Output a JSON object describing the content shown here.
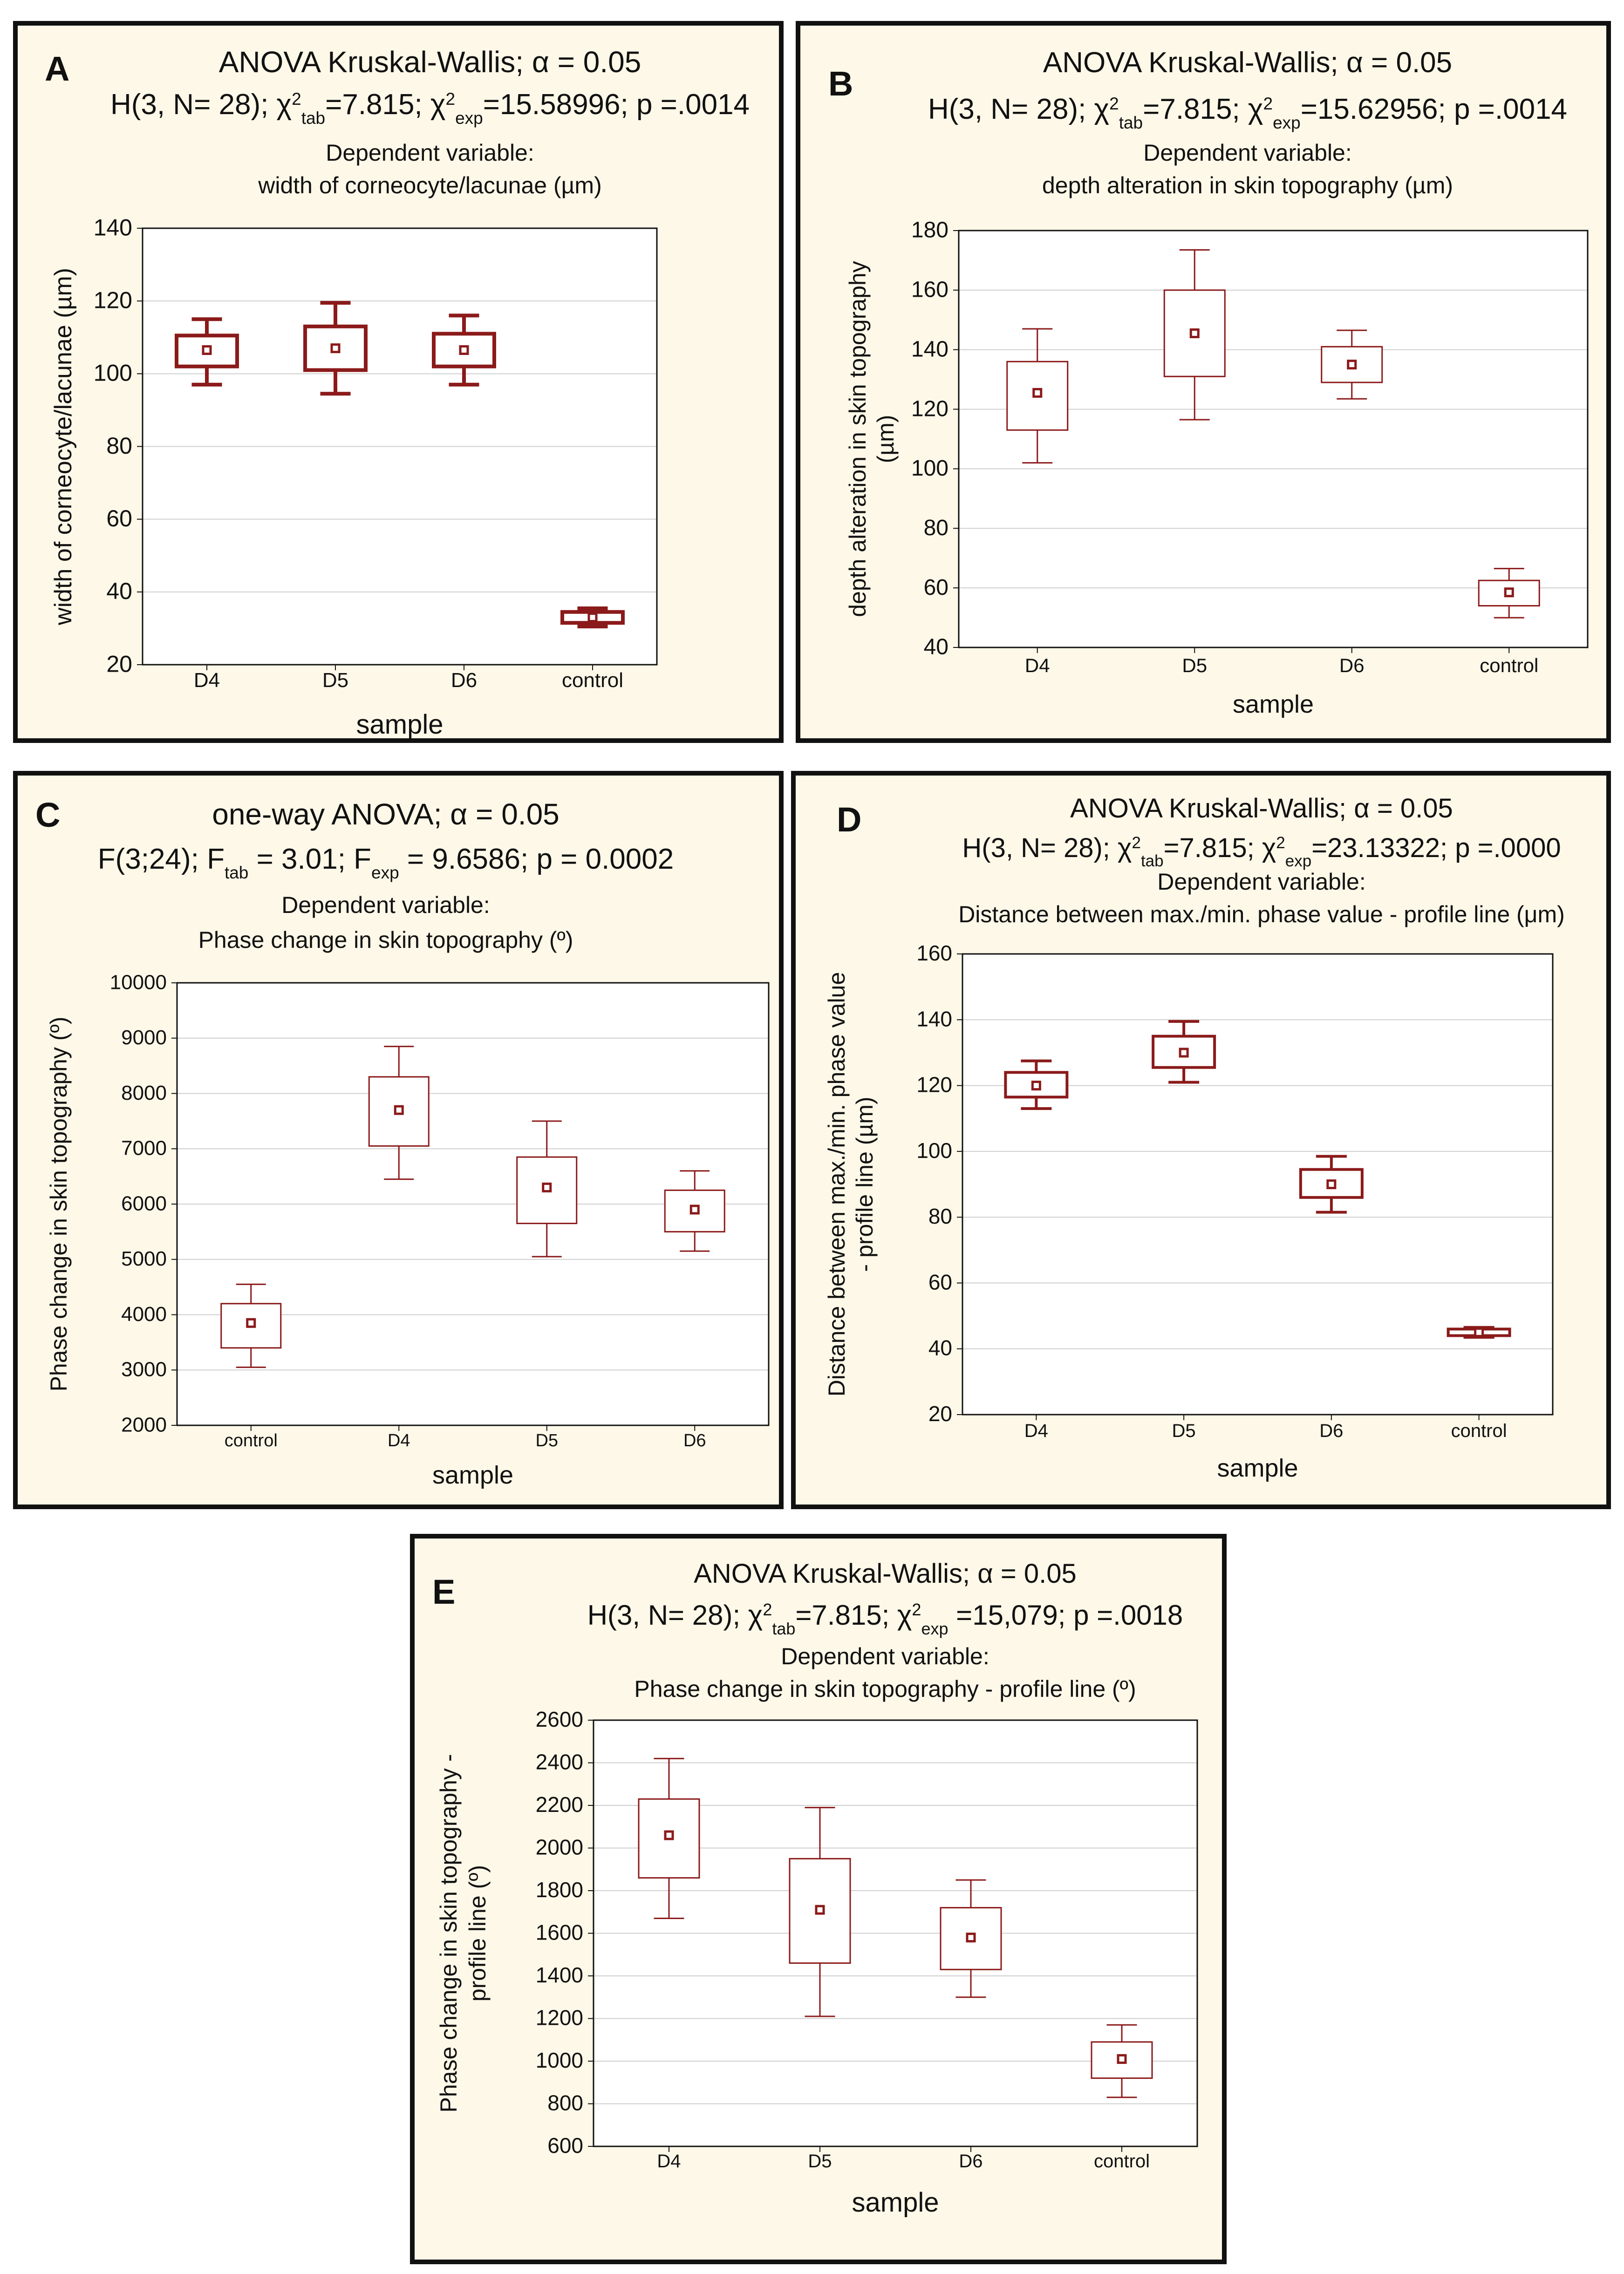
{
  "figure": {
    "colors": {
      "box": "#8b1a1a",
      "panel_bg": "#fdf8e8",
      "plot_bg": "#ffffff",
      "grid": "#cfcfcf",
      "frame": "#111111"
    }
  },
  "chart_data": [
    {
      "panel_label": "A",
      "type": "box",
      "title_line1": "ANOVA Kruskal-Wallis; α = 0.05",
      "stat_line": [
        {
          "t": "H(3, N= 28); χ"
        },
        {
          "t": "2",
          "s": "sup"
        },
        {
          "t": "tab",
          "s": "sub"
        },
        {
          "t": "=7.815; χ"
        },
        {
          "t": "2",
          "s": "sup"
        },
        {
          "t": "exp",
          "s": "sub"
        },
        {
          "t": "=15.58996; p =.0014"
        }
      ],
      "dependent_label": "Dependent variable:",
      "dependent_name": "width of corneocyte/lacunae (µm)",
      "ylabel_lines": [
        "width of corneocyte/lacunae (µm)"
      ],
      "xlabel": "sample",
      "ylim": [
        20,
        140
      ],
      "yticks": [
        20,
        40,
        60,
        80,
        100,
        120,
        140
      ],
      "categories": [
        "D4",
        "D5",
        "D6",
        "control"
      ],
      "boxes": [
        {
          "median": 106.5,
          "q1": 102.0,
          "q3": 110.5,
          "min": 97.0,
          "max": 115.0
        },
        {
          "median": 107.0,
          "q1": 101.0,
          "q3": 113.0,
          "min": 94.5,
          "max": 119.5
        },
        {
          "median": 106.5,
          "q1": 102.0,
          "q3": 111.0,
          "min": 97.0,
          "max": 116.0
        },
        {
          "median": 33.0,
          "q1": 31.5,
          "q3": 34.5,
          "min": 30.5,
          "max": 35.5
        }
      ]
    },
    {
      "panel_label": "B",
      "type": "box",
      "title_line1": "ANOVA Kruskal-Wallis; α = 0.05",
      "stat_line": [
        {
          "t": "H(3, N= 28); χ"
        },
        {
          "t": "2",
          "s": "sup"
        },
        {
          "t": "tab",
          "s": "sub"
        },
        {
          "t": "=7.815; χ"
        },
        {
          "t": "2",
          "s": "sup"
        },
        {
          "t": "exp",
          "s": "sub"
        },
        {
          "t": "=15.62956; p =.0014"
        }
      ],
      "dependent_label": "Dependent variable:",
      "dependent_name": "depth alteration in skin topography (µm)",
      "ylabel_lines": [
        "depth alteration in skin topography",
        "(µm)"
      ],
      "xlabel": "sample",
      "ylim": [
        40,
        180
      ],
      "yticks": [
        40,
        60,
        80,
        100,
        120,
        140,
        160,
        180
      ],
      "categories": [
        "D4",
        "D5",
        "D6",
        "control"
      ],
      "boxes": [
        {
          "median": 125.5,
          "q1": 113.0,
          "q3": 136.0,
          "min": 102.0,
          "max": 147.0
        },
        {
          "median": 145.5,
          "q1": 131.0,
          "q3": 160.0,
          "min": 116.5,
          "max": 173.5
        },
        {
          "median": 135.0,
          "q1": 129.0,
          "q3": 141.0,
          "min": 123.5,
          "max": 146.5
        },
        {
          "median": 58.5,
          "q1": 54.0,
          "q3": 62.5,
          "min": 50.0,
          "max": 66.5
        }
      ]
    },
    {
      "panel_label": "C",
      "type": "box",
      "title_line1": "one-way ANOVA; α = 0.05",
      "stat_line": [
        {
          "t": "F(3;24); F"
        },
        {
          "t": "tab",
          "s": "sub"
        },
        {
          "t": " = 3.01; F"
        },
        {
          "t": "exp",
          "s": "sub"
        },
        {
          "t": " = 9.6586; p = 0.0002"
        }
      ],
      "dependent_label": "Dependent variable:",
      "dependent_name": "Phase change in skin topography (º)",
      "ylabel_lines": [
        "Phase change in skin topography (º)"
      ],
      "xlabel": "sample",
      "ylim": [
        2000,
        10000
      ],
      "yticks": [
        2000,
        3000,
        4000,
        5000,
        6000,
        7000,
        8000,
        9000,
        10000
      ],
      "categories": [
        "control",
        "D4",
        "D5",
        "D6"
      ],
      "boxes": [
        {
          "median": 3850,
          "q1": 3400,
          "q3": 4200,
          "min": 3050,
          "max": 4550
        },
        {
          "median": 7700,
          "q1": 7050,
          "q3": 8300,
          "min": 6450,
          "max": 8850
        },
        {
          "median": 6300,
          "q1": 5650,
          "q3": 6850,
          "min": 5050,
          "max": 7500
        },
        {
          "median": 5900,
          "q1": 5500,
          "q3": 6250,
          "min": 5150,
          "max": 6600
        }
      ]
    },
    {
      "panel_label": "D",
      "type": "box",
      "title_line1": "ANOVA Kruskal-Wallis; α = 0.05",
      "stat_line": [
        {
          "t": "H(3, N= 28); χ"
        },
        {
          "t": "2",
          "s": "sup"
        },
        {
          "t": "tab",
          "s": "sub"
        },
        {
          "t": "=7.815; χ"
        },
        {
          "t": "2",
          "s": "sup"
        },
        {
          "t": "exp",
          "s": "sub"
        },
        {
          "t": "=23.13322; p =.0000"
        }
      ],
      "dependent_label": "Dependent variable:",
      "dependent_name": "Distance between max./min. phase value - profile line (μm)",
      "ylabel_lines": [
        "Distance between max./min. phase value",
        "- profile line (µm)"
      ],
      "xlabel": "sample",
      "ylim": [
        20,
        160
      ],
      "yticks": [
        20,
        40,
        60,
        80,
        100,
        120,
        140,
        160
      ],
      "categories": [
        "D4",
        "D5",
        "D6",
        "control"
      ],
      "boxes": [
        {
          "median": 120.0,
          "q1": 116.5,
          "q3": 124.0,
          "min": 113.0,
          "max": 127.5
        },
        {
          "median": 130.0,
          "q1": 125.5,
          "q3": 135.0,
          "min": 121.0,
          "max": 139.5
        },
        {
          "median": 90.0,
          "q1": 86.0,
          "q3": 94.5,
          "min": 81.5,
          "max": 98.5
        },
        {
          "median": 45.0,
          "q1": 44.0,
          "q3": 46.0,
          "min": 43.5,
          "max": 46.5
        }
      ]
    },
    {
      "panel_label": "E",
      "type": "box",
      "title_line1": "ANOVA Kruskal-Wallis; α = 0.05",
      "stat_line": [
        {
          "t": "H(3, N= 28); χ"
        },
        {
          "t": "2",
          "s": "sup"
        },
        {
          "t": "tab",
          "s": "sub"
        },
        {
          "t": "=7.815; χ"
        },
        {
          "t": "2",
          "s": "sup"
        },
        {
          "t": "exp",
          "s": "sub"
        },
        {
          "t": " =15,079; p =.0018"
        }
      ],
      "dependent_label": "Dependent variable:",
      "dependent_name": "Phase change in skin topography - profile line (º)",
      "ylabel_lines": [
        "Phase change in skin topography -",
        "profile line (º)"
      ],
      "xlabel": "sample",
      "ylim": [
        600,
        2600
      ],
      "yticks": [
        600,
        800,
        1000,
        1200,
        1400,
        1600,
        1800,
        2000,
        2200,
        2400,
        2600
      ],
      "categories": [
        "D4",
        "D5",
        "D6",
        "control"
      ],
      "boxes": [
        {
          "median": 2060,
          "q1": 1860,
          "q3": 2230,
          "min": 1670,
          "max": 2420
        },
        {
          "median": 1710,
          "q1": 1460,
          "q3": 1950,
          "min": 1210,
          "max": 2190
        },
        {
          "median": 1580,
          "q1": 1430,
          "q3": 1720,
          "min": 1300,
          "max": 1850
        },
        {
          "median": 1010,
          "q1": 920,
          "q3": 1090,
          "min": 830,
          "max": 1170
        }
      ]
    }
  ]
}
